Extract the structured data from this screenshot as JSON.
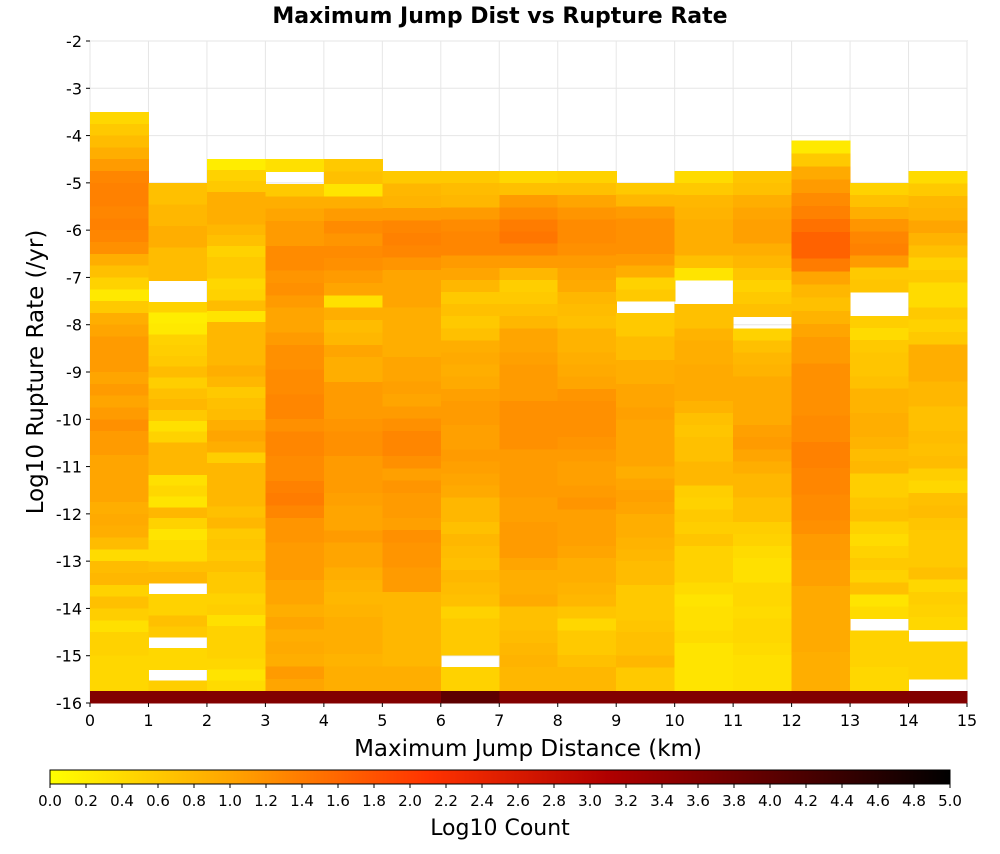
{
  "chart_data": {
    "type": "heatmap",
    "title": "Maximum Jump Dist vs Rupture Rate",
    "xlabel": "Maximum Jump Distance (km)",
    "ylabel": "Log10 Rupture Rate (/yr)",
    "colorbar_label": "Log10 Count",
    "xlim": [
      0,
      15
    ],
    "ylim": [
      -16,
      -2
    ],
    "x_ticks": [
      "0",
      "1",
      "2",
      "3",
      "4",
      "5",
      "6",
      "7",
      "8",
      "9",
      "10",
      "11",
      "12",
      "13",
      "14",
      "15"
    ],
    "y_ticks": [
      "-2",
      "-3",
      "-4",
      "-5",
      "-6",
      "-7",
      "-8",
      "-9",
      "-10",
      "-11",
      "-12",
      "-13",
      "-14",
      "-15",
      "-16"
    ],
    "colorbar_range": [
      0,
      5
    ],
    "colorbar_ticks": [
      "0.0",
      "0.2",
      "0.4",
      "0.6",
      "0.8",
      "1.0",
      "1.2",
      "1.4",
      "1.6",
      "1.8",
      "2.0",
      "2.2",
      "2.4",
      "2.6",
      "2.8",
      "3.0",
      "3.2",
      "3.4",
      "3.6",
      "3.8",
      "4.0",
      "4.2",
      "4.4",
      "4.6",
      "4.8",
      "5.0"
    ],
    "colormap": [
      "#ffff00",
      "#ffa500",
      "#ff3300",
      "#b00000",
      "#000000"
    ],
    "bin_y_height": 0.25,
    "columns": [
      {
        "x": 0,
        "top": -3.5,
        "values": [
          0.45,
          0.6,
          0.75,
          0.9,
          1.1,
          1.3,
          1.35,
          1.35,
          1.3,
          1.35,
          1.3,
          1.2,
          0.9,
          0.7,
          0.5,
          0.25,
          0.6,
          0.9,
          1.0,
          1.1,
          1.1,
          1.1,
          1.0,
          1.1,
          1.0,
          1.1,
          1.2,
          1.1,
          1.1,
          1.0,
          1.0,
          1.0,
          1.0,
          0.9,
          0.95,
          0.9,
          0.75,
          0.4,
          0.75,
          0.8,
          0.5,
          0.7,
          0.55,
          0.35,
          0.5,
          0.5,
          0.45,
          0.45,
          0.45,
          3.6
        ]
      },
      {
        "x": 1,
        "top": -5.0,
        "values": [
          0.7,
          0.7,
          0.8,
          0.8,
          0.9,
          0.9,
          0.75,
          0.75,
          0.75,
          null,
          null,
          0.5,
          0.2,
          0.25,
          0.5,
          0.55,
          0.6,
          0.75,
          0.55,
          0.7,
          0.8,
          0.6,
          0.35,
          0.5,
          0.8,
          0.8,
          0.8,
          0.35,
          0.45,
          0.3,
          0.8,
          0.5,
          0.3,
          0.4,
          0.4,
          0.7,
          0.8,
          null,
          0.5,
          0.5,
          0.7,
          0.6,
          null,
          0.45,
          0.45,
          null,
          0.55,
          3.6
        ]
      },
      {
        "x": 2,
        "top": -4.5,
        "values": [
          0.2,
          0.5,
          0.6,
          0.9,
          0.9,
          0.9,
          0.8,
          0.7,
          0.5,
          0.6,
          0.6,
          0.45,
          0.5,
          0.75,
          0.3,
          0.8,
          0.8,
          0.8,
          0.8,
          0.9,
          0.8,
          0.6,
          0.7,
          0.75,
          0.9,
          1.0,
          0.9,
          0.55,
          0.8,
          0.8,
          0.8,
          0.8,
          0.7,
          0.8,
          0.6,
          0.65,
          0.6,
          0.7,
          0.6,
          0.6,
          0.5,
          0.55,
          0.35,
          0.5,
          0.5,
          0.5,
          0.45,
          0.3,
          0.4,
          3.6
        ]
      },
      {
        "x": 3,
        "top": -4.5,
        "values": [
          0.35,
          null,
          0.6,
          0.9,
          1.0,
          1.1,
          1.1,
          1.25,
          1.25,
          1.15,
          1.2,
          1.1,
          1.0,
          1.0,
          1.1,
          1.2,
          1.2,
          1.25,
          1.25,
          1.3,
          1.3,
          1.2,
          1.3,
          1.3,
          1.25,
          1.25,
          1.35,
          1.4,
          1.3,
          1.15,
          1.15,
          1.1,
          1.1,
          1.1,
          1.0,
          1.0,
          0.9,
          1.0,
          0.9,
          0.95,
          0.9,
          1.1,
          1.0,
          3.6
        ]
      },
      {
        "x": 4,
        "top": -4.5,
        "values": [
          0.6,
          0.7,
          0.3,
          0.9,
          1.1,
          1.25,
          1.15,
          1.25,
          1.2,
          1.1,
          1.0,
          0.35,
          0.9,
          0.75,
          0.8,
          1.0,
          0.9,
          0.9,
          1.1,
          1.1,
          1.1,
          1.15,
          1.2,
          1.2,
          1.1,
          1.1,
          1.1,
          1.05,
          1.0,
          1.0,
          1.1,
          1.0,
          1.0,
          0.9,
          0.85,
          0.8,
          0.85,
          0.9,
          0.9,
          0.9,
          0.85,
          0.9,
          0.9,
          3.6
        ]
      },
      {
        "x": 5,
        "top": -4.75,
        "values": [
          0.6,
          0.8,
          0.85,
          1.1,
          1.3,
          1.35,
          1.3,
          1.15,
          1.0,
          1.0,
          1.0,
          0.9,
          0.9,
          0.9,
          0.9,
          1.0,
          1.0,
          1.05,
          1.0,
          1.1,
          1.2,
          1.3,
          1.3,
          1.2,
          1.05,
          1.15,
          1.1,
          1.1,
          1.05,
          1.2,
          1.15,
          1.15,
          1.1,
          1.1,
          0.8,
          0.8,
          0.8,
          0.8,
          0.8,
          0.8,
          0.9,
          0.9,
          3.6
        ]
      },
      {
        "x": 6,
        "top": -4.75,
        "values": [
          0.6,
          0.75,
          0.8,
          1.1,
          1.25,
          1.3,
          1.3,
          1.1,
          1.0,
          0.8,
          0.6,
          0.7,
          0.6,
          0.7,
          0.9,
          0.95,
          0.9,
          0.95,
          1.05,
          1.1,
          1.1,
          1.05,
          1.05,
          1.1,
          1.05,
          1.0,
          0.95,
          0.8,
          0.8,
          0.7,
          0.8,
          0.75,
          0.7,
          0.8,
          0.75,
          0.7,
          0.5,
          0.6,
          0.6,
          0.6,
          null,
          0.5,
          0.5,
          4.0
        ]
      },
      {
        "x": 7,
        "top": -4.75,
        "values": [
          0.45,
          0.7,
          1.1,
          1.25,
          1.4,
          1.45,
          1.3,
          1.1,
          0.8,
          0.55,
          0.6,
          0.7,
          0.8,
          1.0,
          1.0,
          1.05,
          1.1,
          1.1,
          1.1,
          1.2,
          1.2,
          1.2,
          1.2,
          1.1,
          1.1,
          1.1,
          1.1,
          1.05,
          1.05,
          1.1,
          1.1,
          1.1,
          1.0,
          0.9,
          0.9,
          0.95,
          0.7,
          0.7,
          0.75,
          0.8,
          0.85,
          0.8,
          0.8,
          3.6
        ]
      },
      {
        "x": 8,
        "top": -4.75,
        "values": [
          0.5,
          0.7,
          1.0,
          1.15,
          1.25,
          1.25,
          1.2,
          1.1,
          1.0,
          0.95,
          0.8,
          0.75,
          0.7,
          0.85,
          0.85,
          0.9,
          0.95,
          1.0,
          1.15,
          1.2,
          1.2,
          1.2,
          1.15,
          1.1,
          1.05,
          1.05,
          1.1,
          1.15,
          1.05,
          1.05,
          1.05,
          1.0,
          0.9,
          0.9,
          0.85,
          0.8,
          0.65,
          0.45,
          0.6,
          0.6,
          0.7,
          0.8,
          0.8,
          3.6
        ]
      },
      {
        "x": 9,
        "top": -5.0,
        "values": [
          0.6,
          0.8,
          1.1,
          1.2,
          1.2,
          1.2,
          1.1,
          0.9,
          0.5,
          0.6,
          null,
          0.6,
          0.6,
          0.75,
          0.75,
          0.9,
          0.9,
          1.0,
          1.0,
          1.05,
          1.0,
          1.0,
          1.0,
          1.0,
          0.9,
          1.0,
          1.05,
          1.0,
          0.9,
          0.9,
          0.85,
          0.8,
          0.75,
          0.75,
          0.6,
          0.6,
          0.6,
          0.65,
          0.7,
          0.7,
          0.8,
          0.6,
          0.6,
          3.6
        ]
      },
      {
        "x": 10,
        "top": -4.75,
        "values": [
          0.4,
          0.6,
          0.8,
          0.85,
          0.9,
          0.9,
          0.9,
          0.7,
          0.3,
          null,
          null,
          0.7,
          0.7,
          0.85,
          0.9,
          0.9,
          0.95,
          0.95,
          0.95,
          0.85,
          0.7,
          0.65,
          0.7,
          0.7,
          0.8,
          0.8,
          0.55,
          0.5,
          0.6,
          0.55,
          0.65,
          0.5,
          0.5,
          0.5,
          0.4,
          0.3,
          0.35,
          0.35,
          0.4,
          0.3,
          0.3,
          0.3,
          0.3,
          3.6
        ]
      },
      {
        "x": 11,
        "top": -4.75,
        "values": [
          0.65,
          0.7,
          0.9,
          1.0,
          1.05,
          1.05,
          0.9,
          0.8,
          0.65,
          0.5,
          0.6,
          0.7,
          null,
          0.5,
          0.7,
          0.8,
          0.85,
          0.95,
          0.95,
          0.95,
          0.95,
          1.05,
          1.1,
          1.0,
          0.9,
          0.8,
          0.8,
          0.7,
          0.7,
          0.55,
          0.5,
          0.4,
          0.35,
          0.35,
          0.45,
          0.45,
          0.4,
          0.45,
          0.45,
          0.4,
          0.35,
          0.35,
          0.35,
          3.6
        ]
      },
      {
        "x": 12,
        "top": -4.1,
        "values": [
          0.25,
          0.6,
          0.95,
          1.1,
          1.25,
          1.35,
          1.5,
          1.65,
          1.65,
          1.4,
          1.0,
          0.8,
          0.7,
          0.85,
          1.0,
          1.1,
          1.1,
          1.2,
          1.2,
          1.2,
          1.2,
          1.25,
          1.25,
          1.35,
          1.35,
          1.3,
          1.3,
          1.25,
          1.25,
          1.2,
          1.1,
          1.1,
          1.05,
          1.05,
          0.95,
          0.95,
          0.95,
          0.95,
          0.95,
          0.9,
          0.9,
          0.9,
          3.6
        ]
      },
      {
        "x": 13,
        "top": -5.0,
        "values": [
          0.5,
          0.7,
          0.9,
          1.15,
          1.3,
          1.35,
          1.1,
          0.6,
          0.65,
          null,
          null,
          0.55,
          0.4,
          0.6,
          0.65,
          0.65,
          0.7,
          0.85,
          0.85,
          0.9,
          0.9,
          0.85,
          0.75,
          0.8,
          0.55,
          0.55,
          0.65,
          0.7,
          0.5,
          0.4,
          0.5,
          0.6,
          0.5,
          0.7,
          0.3,
          0.4,
          null,
          0.5,
          0.5,
          0.5,
          0.45,
          0.45,
          3.6
        ]
      },
      {
        "x": 14,
        "top": -4.75,
        "values": [
          0.4,
          0.6,
          0.8,
          0.85,
          1.0,
          0.85,
          0.7,
          0.5,
          0.6,
          0.4,
          0.4,
          0.6,
          0.5,
          0.6,
          0.9,
          0.9,
          0.9,
          0.8,
          0.8,
          0.7,
          0.7,
          0.75,
          0.7,
          0.75,
          0.55,
          0.45,
          0.7,
          0.75,
          0.65,
          0.6,
          0.6,
          0.6,
          0.7,
          0.45,
          0.55,
          0.5,
          0.45,
          null,
          0.5,
          0.5,
          0.5,
          null,
          3.6
        ]
      }
    ]
  }
}
